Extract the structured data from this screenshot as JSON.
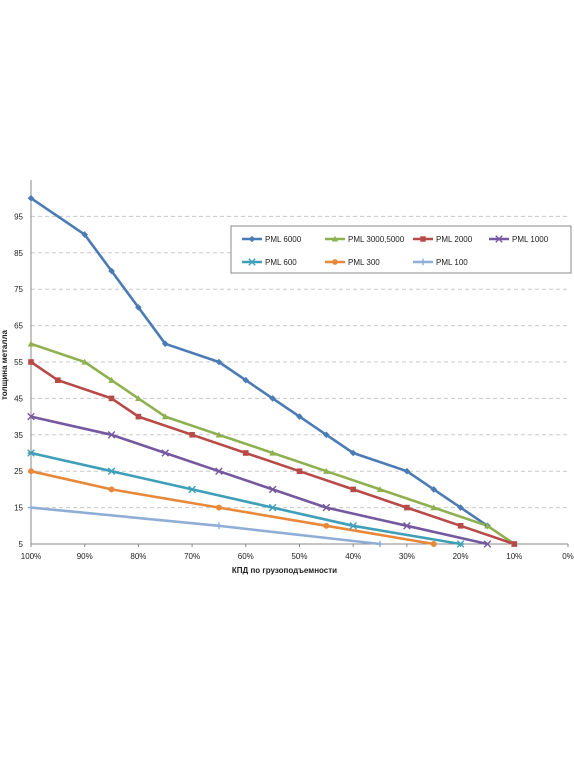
{
  "chart_data": {
    "type": "line",
    "title": "",
    "xlabel": "КПД по грузоподъемности",
    "ylabel": "толщина металла",
    "xlim": [
      100,
      0
    ],
    "x_reversed": true,
    "ylim": [
      5,
      105
    ],
    "x_ticks": [
      100,
      90,
      80,
      70,
      60,
      50,
      40,
      30,
      20,
      10,
      0
    ],
    "x_tick_labels": [
      "100%",
      "90%",
      "80%",
      "70%",
      "60%",
      "50%",
      "40%",
      "30%",
      "20%",
      "10%",
      "0%"
    ],
    "y_ticks": [
      5,
      15,
      25,
      35,
      45,
      55,
      65,
      75,
      85,
      95
    ],
    "grid": {
      "horizontal": true,
      "style": "dashed"
    },
    "legend": {
      "position": "top-right",
      "columns": 4
    },
    "series": [
      {
        "name": "PML 6000",
        "color": "#4a7bb5",
        "marker": "diamond",
        "x": [
          100,
          90,
          85,
          80,
          75,
          65,
          60,
          55,
          50,
          45,
          40,
          30,
          25,
          20,
          15
        ],
        "y": [
          100,
          90,
          80,
          70,
          60,
          55,
          50,
          45,
          40,
          35,
          30,
          25,
          20,
          15,
          10
        ]
      },
      {
        "name": "PML 3000,5000",
        "color": "#8fb04f",
        "marker": "triangle",
        "x": [
          100,
          90,
          85,
          80,
          75,
          65,
          55,
          45,
          35,
          25,
          15,
          10
        ],
        "y": [
          60,
          55,
          50,
          45,
          40,
          35,
          30,
          25,
          20,
          15,
          10,
          5
        ]
      },
      {
        "name": "PML 2000",
        "color": "#b84a48",
        "marker": "square",
        "x": [
          100,
          95,
          85,
          80,
          70,
          60,
          50,
          40,
          30,
          20,
          10
        ],
        "y": [
          55,
          50,
          45,
          40,
          35,
          30,
          25,
          20,
          15,
          10,
          5
        ]
      },
      {
        "name": "PML 1000",
        "color": "#7459a0",
        "marker": "x",
        "x": [
          100,
          85,
          75,
          65,
          55,
          45,
          30,
          15
        ],
        "y": [
          40,
          35,
          30,
          25,
          20,
          15,
          10,
          5
        ]
      },
      {
        "name": "PML 600",
        "color": "#3f9fb8",
        "marker": "star",
        "x": [
          100,
          85,
          70,
          55,
          40,
          20
        ],
        "y": [
          30,
          25,
          20,
          15,
          10,
          5
        ]
      },
      {
        "name": "PML 300",
        "color": "#e8883a",
        "marker": "circle",
        "x": [
          100,
          85,
          65,
          45,
          25
        ],
        "y": [
          25,
          20,
          15,
          10,
          5
        ]
      },
      {
        "name": "PML 100",
        "color": "#8eaed6",
        "marker": "plus",
        "x": [
          100,
          65,
          35
        ],
        "y": [
          15,
          10,
          5
        ]
      }
    ]
  }
}
